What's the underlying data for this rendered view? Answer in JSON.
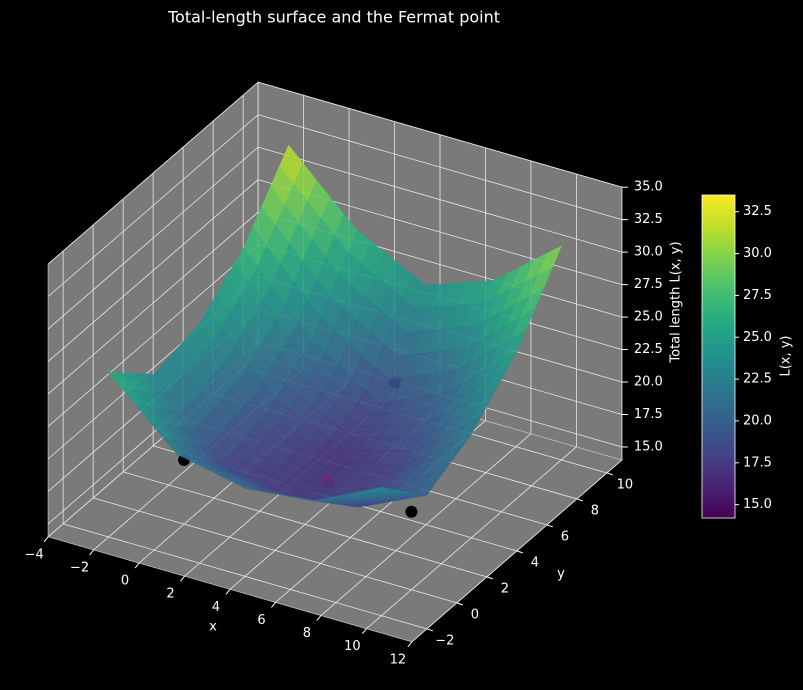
{
  "chart_data": {
    "type": "surface3d",
    "title": "Total-length surface and the Fermat point",
    "xlabel": "x",
    "ylabel": "y",
    "zlabel": "Total length L(x, y)",
    "colorbar_label": "L(x, y)",
    "colormap": "viridis",
    "x": [
      -2,
      1,
      4,
      7,
      10
    ],
    "y": [
      -2,
      1,
      4,
      7,
      10
    ],
    "z": [
      [
        26.66,
        21.9,
        20.79,
        21.33,
        23.86
      ],
      [
        23.5,
        18.09,
        17.2,
        17.85,
        20.27
      ],
      [
        24.33,
        18.97,
        16.87,
        18.06,
        21.98
      ],
      [
        27.25,
        21.63,
        18.28,
        20.68,
        25.29
      ],
      [
        32.14,
        27.11,
        24.43,
        26.26,
        30.46
      ]
    ],
    "points": {
      "x": [
        0,
        10,
        4,
        4.5
      ],
      "y": [
        0,
        0,
        8,
        2.8
      ],
      "z": [
        18.94,
        20,
        18.94,
        16.66
      ],
      "colors": [
        "#000000",
        "#000000",
        "#000000",
        "#b0104f"
      ]
    },
    "xlim": [
      -4,
      12
    ],
    "ylim": [
      -3,
      11
    ],
    "zlim": [
      14,
      35
    ],
    "xticks": [
      {
        "value": -4,
        "label": "−4"
      },
      {
        "value": -2,
        "label": "−2"
      },
      0,
      2,
      4,
      6,
      8,
      10,
      12
    ],
    "yticks": [
      {
        "value": -2,
        "label": "−2"
      },
      0,
      2,
      4,
      6,
      8,
      10
    ],
    "zticks": [
      {
        "value": 15,
        "label": "15.0"
      },
      {
        "value": 17.5,
        "label": "17.5"
      },
      {
        "value": 20,
        "label": "20.0"
      },
      {
        "value": 22.5,
        "label": "22.5"
      },
      {
        "value": 25,
        "label": "25.0"
      },
      {
        "value": 27.5,
        "label": "27.5"
      },
      {
        "value": 30,
        "label": "30.0"
      },
      {
        "value": 32.5,
        "label": "32.5"
      },
      {
        "value": 35,
        "label": "35.0"
      }
    ],
    "clim": [
      14.2,
      33.5
    ],
    "cticks": [
      {
        "value": 15,
        "label": "15.0"
      },
      {
        "value": 17.5,
        "label": "17.5"
      },
      {
        "value": 20,
        "label": "20.0"
      },
      {
        "value": 22.5,
        "label": "22.5"
      },
      {
        "value": 25,
        "label": "25.0"
      },
      {
        "value": 27.5,
        "label": "27.5"
      },
      {
        "value": 30,
        "label": "30.0"
      },
      {
        "value": 32.5,
        "label": "32.5"
      }
    ],
    "grid": true
  }
}
